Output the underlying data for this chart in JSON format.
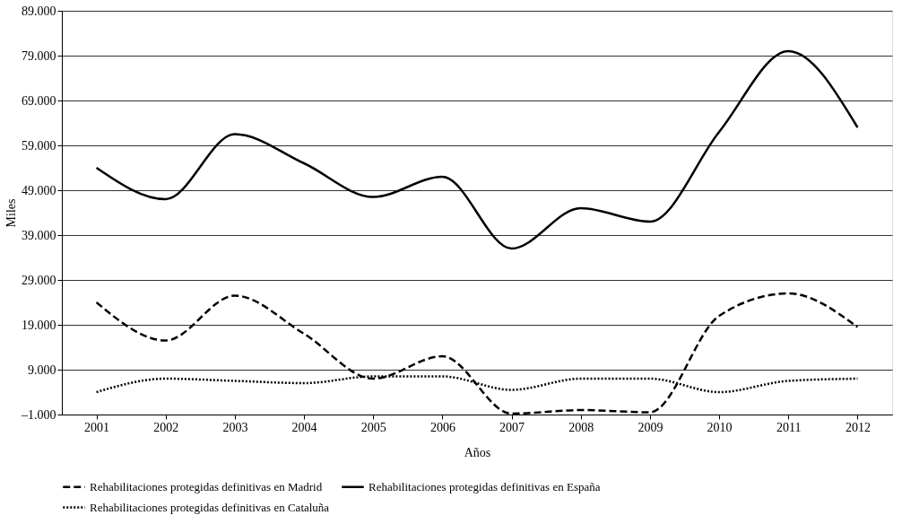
{
  "chart_data": {
    "type": "line",
    "xlabel": "Años",
    "ylabel": "Miles",
    "categories": [
      "2001",
      "2002",
      "2003",
      "2004",
      "2005",
      "2006",
      "2007",
      "2008",
      "2009",
      "2010",
      "2011",
      "2012"
    ],
    "series": [
      {
        "name": "Rehabilitaciones protegidas definitivas en Madrid",
        "color": "#000000",
        "line_style": "dashed",
        "values": [
          24000,
          15500,
          25500,
          17000,
          7000,
          12000,
          -800,
          0,
          -500,
          21000,
          26000,
          18500
        ]
      },
      {
        "name": "Rehabilitaciones protegidas definitivas en España",
        "color": "#000000",
        "line_style": "solid",
        "values": [
          54000,
          47000,
          61500,
          55000,
          47500,
          52000,
          36000,
          45000,
          42000,
          62000,
          80000,
          63000
        ]
      },
      {
        "name": "Rehabilitaciones protegidas definitivas en Cataluña",
        "color": "#000000",
        "line_style": "dotted",
        "values": [
          4000,
          7000,
          6500,
          6000,
          7500,
          7500,
          4500,
          7000,
          7000,
          4000,
          6500,
          7000
        ]
      }
    ],
    "ylim": [
      -1000,
      89000
    ],
    "yticks": [
      {
        "value": -1000,
        "label": "–1.000"
      },
      {
        "value": 9000,
        "label": "9.000"
      },
      {
        "value": 19000,
        "label": "19.000"
      },
      {
        "value": 29000,
        "label": "29.000"
      },
      {
        "value": 39000,
        "label": "39.000"
      },
      {
        "value": 49000,
        "label": "49.000"
      },
      {
        "value": 59000,
        "label": "59.000"
      },
      {
        "value": 69000,
        "label": "69.000"
      },
      {
        "value": 79000,
        "label": "79.000"
      },
      {
        "value": 89000,
        "label": "89.000"
      }
    ],
    "grid": "y",
    "legend": "bottom",
    "marker": "none"
  }
}
